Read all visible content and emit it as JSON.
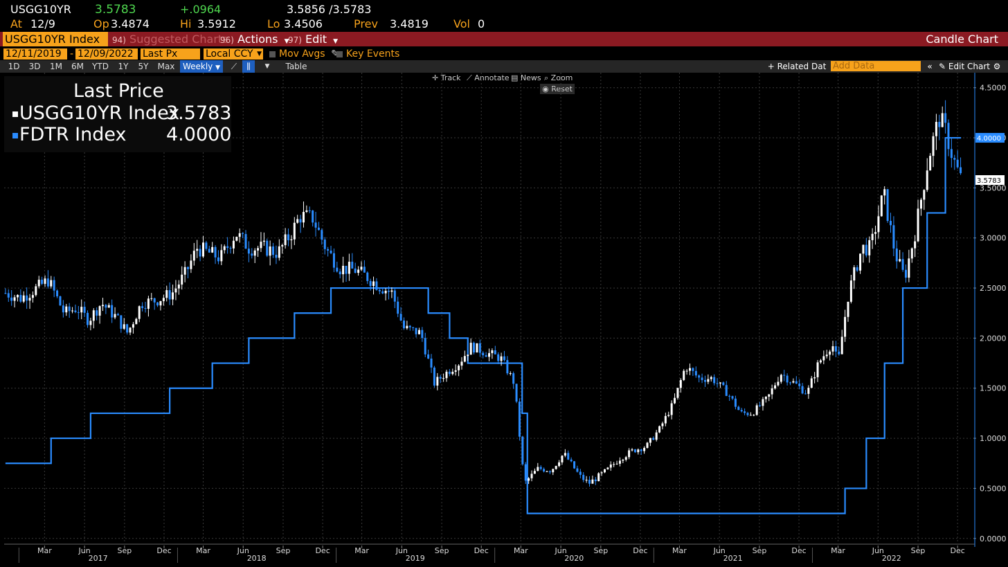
{
  "header": {
    "ticker": "USGG10YR",
    "last": "3.5783",
    "change": "+.0964",
    "bid_ask": "3.5856 /3.5783",
    "at_label": "At",
    "at_value": "12/9",
    "op_label": "Op",
    "op_value": "3.4874",
    "hi_label": "Hi",
    "hi_value": "3.5912",
    "lo_label": "Lo",
    "lo_value": "3.4506",
    "prev_label": "Prev",
    "prev_value": "3.4819",
    "vol_label": "Vol",
    "vol_value": "0"
  },
  "menu": {
    "security": "USGG10YR Index",
    "suggested_num": "94)",
    "suggested": "Suggested Charts",
    "actions_num": "96)",
    "actions": "Actions",
    "edit_num": "97)",
    "edit": "Edit",
    "chart_type": "Candle Chart"
  },
  "options": {
    "start_date": "12/11/2019",
    "end_date": "12/09/2022",
    "date_sep": "-",
    "field": "Last Px",
    "currency": "Local CCY",
    "mov_avgs": "Mov Avgs",
    "key_events": "Key Events"
  },
  "toolbar": {
    "ranges": [
      "1D",
      "3D",
      "1M",
      "6M",
      "YTD",
      "1Y",
      "5Y",
      "Max"
    ],
    "period": "Weekly",
    "table": "Table",
    "related": "+ Related Dat",
    "add_data_placeholder": "Add Data",
    "edit_chart": "Edit Chart"
  },
  "chart_tools": {
    "track": "Track",
    "annotate": "Annotate",
    "news": "News",
    "zoom": "Zoom",
    "reset": "Reset"
  },
  "legend": {
    "title": "Last Price",
    "items": [
      {
        "name": "USGG10YR Index",
        "value": "3.5783",
        "color": "#ffffff"
      },
      {
        "name": "FDTR Index",
        "value": "4.0000",
        "color": "#2a8cff"
      }
    ]
  },
  "colors": {
    "accent": "#f7a21b",
    "menu_bg": "#8b1a22",
    "fdtr": "#2a8cff",
    "candle_up": "#ffffff",
    "candle_down": "#2a8cff",
    "grid": "#3a3a3a"
  },
  "chart_data": {
    "type": "line",
    "series": [
      {
        "name": "FDTR Index",
        "style": "step",
        "points": [
          [
            "2016-12-01",
            0.75
          ],
          [
            "2017-03-16",
            1.0
          ],
          [
            "2017-06-15",
            1.25
          ],
          [
            "2017-12-14",
            1.5
          ],
          [
            "2018-03-22",
            1.75
          ],
          [
            "2018-06-14",
            2.0
          ],
          [
            "2018-09-27",
            2.25
          ],
          [
            "2018-12-20",
            2.5
          ],
          [
            "2019-08-01",
            2.25
          ],
          [
            "2019-09-19",
            2.0
          ],
          [
            "2019-10-31",
            1.75
          ],
          [
            "2020-03-04",
            1.25
          ],
          [
            "2020-03-16",
            0.25
          ],
          [
            "2022-03-17",
            0.5
          ],
          [
            "2022-05-05",
            1.0
          ],
          [
            "2022-06-16",
            1.75
          ],
          [
            "2022-07-28",
            2.5
          ],
          [
            "2022-09-22",
            3.25
          ],
          [
            "2022-11-03",
            4.0
          ],
          [
            "2022-12-09",
            4.0
          ]
        ]
      },
      {
        "name": "USGG10YR Index",
        "style": "candle",
        "points": [
          [
            "2016-12-01",
            2.45
          ],
          [
            "2017-01-05",
            2.4
          ],
          [
            "2017-02-01",
            2.47
          ],
          [
            "2017-03-10",
            2.58
          ],
          [
            "2017-04-15",
            2.25
          ],
          [
            "2017-05-15",
            2.3
          ],
          [
            "2017-06-10",
            2.18
          ],
          [
            "2017-07-10",
            2.35
          ],
          [
            "2017-08-15",
            2.2
          ],
          [
            "2017-09-08",
            2.05
          ],
          [
            "2017-10-10",
            2.35
          ],
          [
            "2017-11-15",
            2.38
          ],
          [
            "2017-12-20",
            2.45
          ],
          [
            "2018-01-20",
            2.65
          ],
          [
            "2018-02-15",
            2.9
          ],
          [
            "2018-03-15",
            2.85
          ],
          [
            "2018-04-10",
            2.8
          ],
          [
            "2018-05-15",
            3.05
          ],
          [
            "2018-06-15",
            2.9
          ],
          [
            "2018-07-20",
            2.9
          ],
          [
            "2018-08-20",
            2.85
          ],
          [
            "2018-09-20",
            3.05
          ],
          [
            "2018-10-10",
            3.22
          ],
          [
            "2018-11-08",
            3.2
          ],
          [
            "2018-12-10",
            2.88
          ],
          [
            "2019-01-10",
            2.7
          ],
          [
            "2019-02-15",
            2.68
          ],
          [
            "2019-03-10",
            2.62
          ],
          [
            "2019-04-10",
            2.52
          ],
          [
            "2019-05-10",
            2.45
          ],
          [
            "2019-06-05",
            2.1
          ],
          [
            "2019-07-15",
            2.05
          ],
          [
            "2019-08-15",
            1.55
          ],
          [
            "2019-09-10",
            1.65
          ],
          [
            "2019-10-10",
            1.75
          ],
          [
            "2019-11-08",
            1.92
          ],
          [
            "2019-12-15",
            1.85
          ],
          [
            "2020-01-15",
            1.8
          ],
          [
            "2020-02-15",
            1.55
          ],
          [
            "2020-03-09",
            0.55
          ],
          [
            "2020-04-10",
            0.7
          ],
          [
            "2020-05-10",
            0.68
          ],
          [
            "2020-06-08",
            0.85
          ],
          [
            "2020-07-15",
            0.62
          ],
          [
            "2020-08-05",
            0.55
          ],
          [
            "2020-09-15",
            0.68
          ],
          [
            "2020-10-15",
            0.8
          ],
          [
            "2020-11-15",
            0.88
          ],
          [
            "2020-12-15",
            0.92
          ],
          [
            "2021-01-15",
            1.1
          ],
          [
            "2021-02-15",
            1.35
          ],
          [
            "2021-03-15",
            1.72
          ],
          [
            "2021-04-15",
            1.6
          ],
          [
            "2021-05-15",
            1.6
          ],
          [
            "2021-06-20",
            1.45
          ],
          [
            "2021-07-20",
            1.25
          ],
          [
            "2021-08-15",
            1.25
          ],
          [
            "2021-09-20",
            1.4
          ],
          [
            "2021-10-20",
            1.65
          ],
          [
            "2021-11-20",
            1.55
          ],
          [
            "2021-12-20",
            1.45
          ],
          [
            "2022-01-15",
            1.75
          ],
          [
            "2022-02-15",
            1.95
          ],
          [
            "2022-03-01",
            1.75
          ],
          [
            "2022-03-25",
            2.45
          ],
          [
            "2022-04-25",
            2.9
          ],
          [
            "2022-05-15",
            2.9
          ],
          [
            "2022-06-14",
            3.45
          ],
          [
            "2022-07-10",
            2.85
          ],
          [
            "2022-08-01",
            2.6
          ],
          [
            "2022-08-25",
            3.05
          ],
          [
            "2022-09-25",
            3.8
          ],
          [
            "2022-10-20",
            4.2
          ],
          [
            "2022-11-05",
            4.05
          ],
          [
            "2022-11-20",
            3.8
          ],
          [
            "2022-12-09",
            3.58
          ]
        ]
      }
    ],
    "x_ticks": [
      "Mar",
      "Jun",
      "Sep",
      "Dec",
      "Mar",
      "Jun",
      "Sep",
      "Dec",
      "Mar",
      "Jun",
      "Sep",
      "Dec",
      "Mar",
      "Jun",
      "Sep",
      "Dec",
      "Mar",
      "Jun",
      "Sep",
      "Dec",
      "Mar",
      "Jun",
      "Sep",
      "Dec"
    ],
    "x_tick_dates": [
      "2017-03-01",
      "2017-06-01",
      "2017-09-01",
      "2017-12-01",
      "2018-03-01",
      "2018-06-01",
      "2018-09-01",
      "2018-12-01",
      "2019-03-01",
      "2019-06-01",
      "2019-09-01",
      "2019-12-01",
      "2020-03-01",
      "2020-06-01",
      "2020-09-01",
      "2020-12-01",
      "2021-03-01",
      "2021-06-01",
      "2021-09-01",
      "2021-12-01",
      "2022-03-01",
      "2022-06-01",
      "2022-09-01",
      "2022-12-01"
    ],
    "x_years": [
      "2017",
      "2018",
      "2019",
      "2020",
      "2021",
      "2022"
    ],
    "x_range": [
      "2016-11-28",
      "2022-12-31"
    ],
    "y_ticks": [
      "0.0000",
      "0.5000",
      "1.0000",
      "1.5000",
      "2.0000",
      "2.5000",
      "3.0000",
      "3.5000",
      "4.0000",
      "4.5000"
    ],
    "y_range": [
      -0.05,
      4.65
    ],
    "last_labels": {
      "fdtr": "4.0000",
      "usgg": "3.5783"
    },
    "grid": true
  }
}
